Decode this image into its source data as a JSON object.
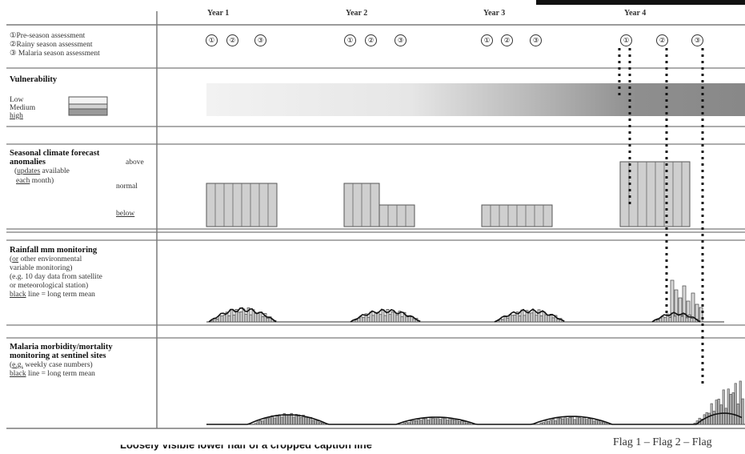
{
  "years": [
    "Year 1",
    "Year 2",
    "Year 3",
    "Year 4"
  ],
  "assessment_markers": [
    "①",
    "②",
    "③"
  ],
  "legend": {
    "pre_season": "①Pre-season assessment",
    "rainy_season": "②Rainy season assessment",
    "malaria_season": "③ Malaria season assessment"
  },
  "vulnerability": {
    "title": "Vulnerability",
    "low": "Low",
    "medium": "Medium",
    "high": "high"
  },
  "forecast": {
    "title_1": "Seasonal climate forecast",
    "title_2": "anomalies",
    "above": "above",
    "note_a": "updates",
    "note_b": " available",
    "note_c": "each",
    "note_d": " month)",
    "normal": "normal",
    "below": "below"
  },
  "rainfall": {
    "title": "Rainfall mm monitoring",
    "line1_a": "or",
    "line1_b": " other environmental",
    "line2": "variable monitoring)",
    "line3_a": "(e.g. 10 day data from satellite",
    "line4": "or meteorological station)",
    "line5_a": "black",
    "line5_b": " line = long term mean"
  },
  "malaria": {
    "title_1": "Malaria morbidity/mortality",
    "title_2": "monitoring at sentinel sites",
    "line1_a": "e.g.",
    "line1_b": " weekly case numbers)",
    "line2_a": "black",
    "line2_b": " line = long term mean"
  },
  "flags": "Flag 1 – Flag 2 – Flag",
  "caption": "Loosely visible lower half of a cropped caption line"
}
